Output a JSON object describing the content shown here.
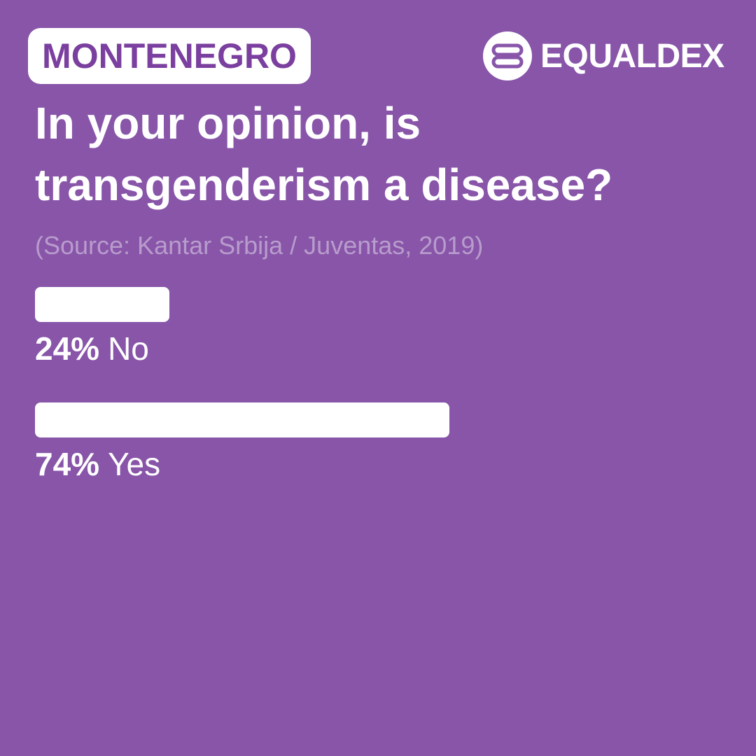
{
  "country": "MONTENEGRO",
  "brand": {
    "name": "EQUALDEX",
    "logo_icon": "equaldex-logo-icon"
  },
  "title": "In your opinion, is transgenderism a disease?",
  "source": "(Source: Kantar Srbija / Juventas, 2019)",
  "colors": {
    "background": "#8855a9",
    "bar": "#ffffff",
    "tag_text": "#7b3f9f",
    "source_text": "#b89ccc"
  },
  "chart_data": {
    "type": "bar",
    "orientation": "horizontal",
    "title": "In your opinion, is transgenderism a disease?",
    "categories": [
      "No",
      "Yes"
    ],
    "values": [
      24,
      74
    ],
    "value_labels": [
      "24%",
      "74%"
    ],
    "unit": "%",
    "xlim": [
      0,
      100
    ],
    "grid": false
  }
}
